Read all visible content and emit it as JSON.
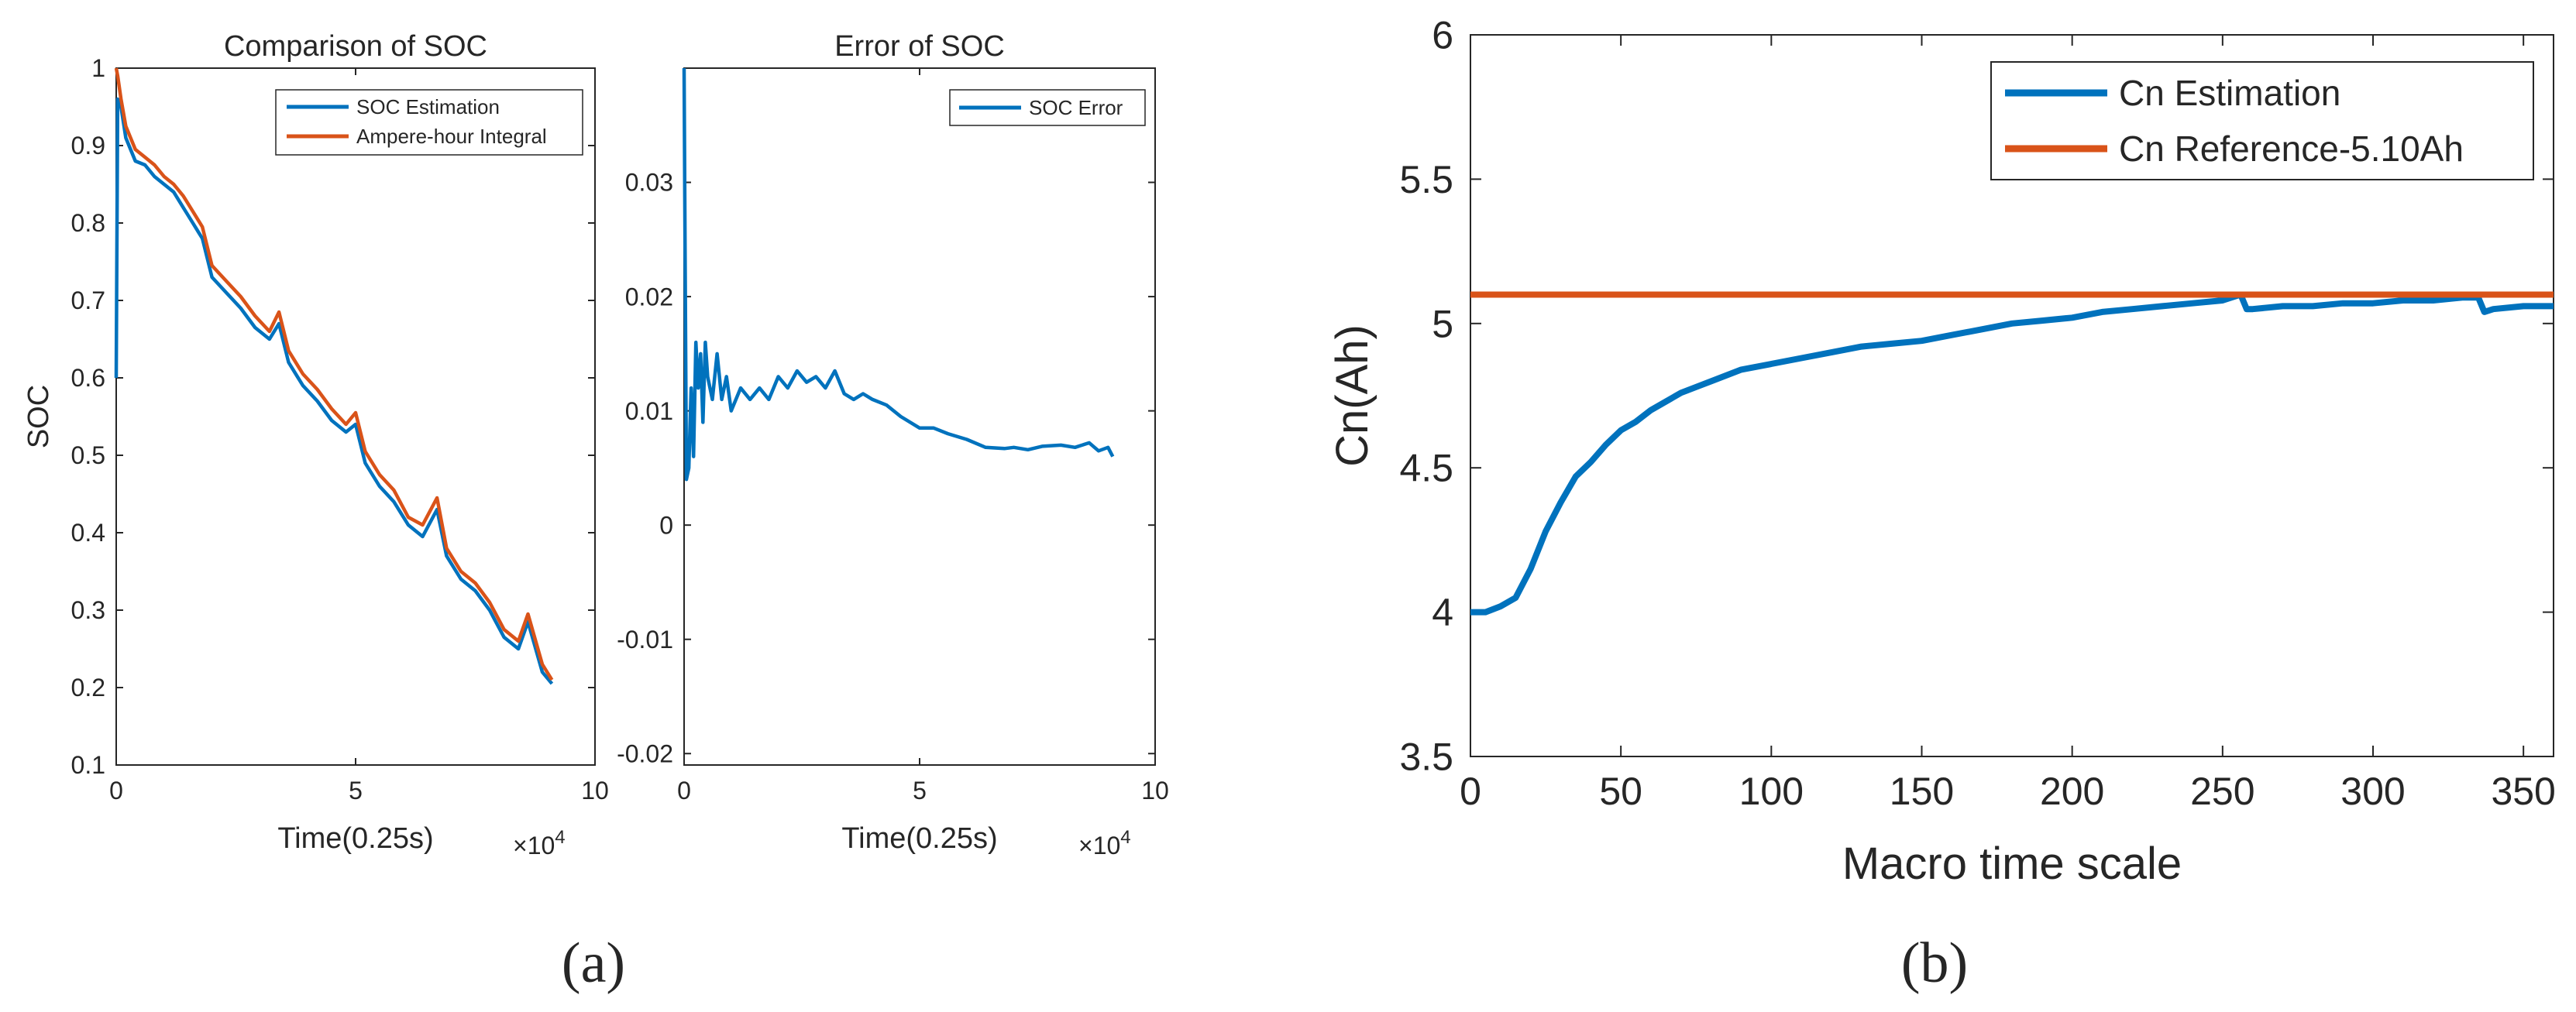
{
  "panel_labels": {
    "a": "(a)",
    "b": "(b)"
  },
  "colors": {
    "blue": "#0072BD",
    "orange": "#D95319",
    "axis": "#262626"
  },
  "chart_data": [
    {
      "id": "soc-comparison",
      "type": "line",
      "title": "Comparison of SOC",
      "xlabel": "Time(0.25s)",
      "ylabel": "SOC",
      "x_multiplier_label": "×10",
      "x_multiplier_exp": "4",
      "xlim": [
        0,
        10
      ],
      "ylim": [
        0.1,
        1
      ],
      "xticks": [
        0,
        5,
        10
      ],
      "xtick_labels": [
        "0",
        "5",
        "10"
      ],
      "yticks": [
        0.1,
        0.2,
        0.3,
        0.4,
        0.5,
        0.6,
        0.7,
        0.8,
        0.9,
        1
      ],
      "ytick_labels": [
        "0.1",
        "0.2",
        "0.3",
        "0.4",
        "0.5",
        "0.6",
        "0.7",
        "0.8",
        "0.9",
        "1"
      ],
      "legend": "top-right",
      "series": [
        {
          "name": "SOC Estimation",
          "color": "#0072BD",
          "x": [
            0,
            0.03,
            0.1,
            0.2,
            0.4,
            0.6,
            0.8,
            1.0,
            1.2,
            1.4,
            1.6,
            1.8,
            2.0,
            2.3,
            2.6,
            2.9,
            3.2,
            3.4,
            3.6,
            3.9,
            4.2,
            4.5,
            4.8,
            5.0,
            5.2,
            5.5,
            5.8,
            6.1,
            6.4,
            6.7,
            6.9,
            7.2,
            7.5,
            7.8,
            8.1,
            8.4,
            8.6,
            8.9,
            9.1
          ],
          "y": [
            0.6,
            0.96,
            0.95,
            0.91,
            0.88,
            0.875,
            0.86,
            0.85,
            0.84,
            0.82,
            0.8,
            0.78,
            0.73,
            0.71,
            0.69,
            0.665,
            0.65,
            0.67,
            0.62,
            0.59,
            0.57,
            0.545,
            0.53,
            0.54,
            0.49,
            0.46,
            0.44,
            0.41,
            0.395,
            0.43,
            0.37,
            0.34,
            0.325,
            0.3,
            0.265,
            0.25,
            0.285,
            0.22,
            0.205
          ]
        },
        {
          "name": "Ampere-hour Integral",
          "color": "#D95319",
          "x": [
            0,
            0.03,
            0.1,
            0.2,
            0.4,
            0.6,
            0.8,
            1.0,
            1.2,
            1.4,
            1.6,
            1.8,
            2.0,
            2.3,
            2.6,
            2.9,
            3.2,
            3.4,
            3.6,
            3.9,
            4.2,
            4.5,
            4.8,
            5.0,
            5.2,
            5.5,
            5.8,
            6.1,
            6.4,
            6.7,
            6.9,
            7.2,
            7.5,
            7.8,
            8.1,
            8.4,
            8.6,
            8.9,
            9.1
          ],
          "y": [
            1.0,
            0.99,
            0.96,
            0.925,
            0.895,
            0.885,
            0.875,
            0.86,
            0.85,
            0.835,
            0.815,
            0.795,
            0.745,
            0.725,
            0.705,
            0.68,
            0.66,
            0.685,
            0.635,
            0.605,
            0.585,
            0.56,
            0.54,
            0.555,
            0.505,
            0.475,
            0.455,
            0.42,
            0.41,
            0.445,
            0.38,
            0.35,
            0.335,
            0.31,
            0.275,
            0.26,
            0.295,
            0.23,
            0.21
          ]
        }
      ]
    },
    {
      "id": "soc-error",
      "type": "line",
      "title": "Error of SOC",
      "xlabel": "Time(0.25s)",
      "ylabel": "",
      "x_multiplier_label": "×10",
      "x_multiplier_exp": "4",
      "xlim": [
        0,
        10
      ],
      "ylim": [
        -0.021,
        0.04
      ],
      "xticks": [
        0,
        5,
        10
      ],
      "xtick_labels": [
        "0",
        "5",
        "10"
      ],
      "yticks": [
        -0.02,
        -0.01,
        0,
        0.01,
        0.02,
        0.03
      ],
      "ytick_labels": [
        "-0.02",
        "-0.01",
        "0",
        "0.01",
        "0.02",
        "0.03"
      ],
      "legend": "top-right",
      "series": [
        {
          "name": "SOC Error",
          "color": "#0072BD",
          "x": [
            0,
            0.02,
            0.05,
            0.1,
            0.15,
            0.2,
            0.25,
            0.3,
            0.35,
            0.4,
            0.45,
            0.5,
            0.6,
            0.7,
            0.8,
            0.9,
            1.0,
            1.2,
            1.4,
            1.6,
            1.8,
            2.0,
            2.2,
            2.4,
            2.6,
            2.8,
            3.0,
            3.2,
            3.4,
            3.6,
            3.8,
            4.0,
            4.3,
            4.6,
            5.0,
            5.3,
            5.6,
            6.0,
            6.4,
            6.8,
            7.0,
            7.3,
            7.6,
            8.0,
            8.3,
            8.6,
            8.8,
            9.0,
            9.1
          ],
          "y": [
            0.04,
            0.025,
            0.004,
            0.005,
            0.012,
            0.006,
            0.016,
            0.012,
            0.015,
            0.009,
            0.016,
            0.013,
            0.011,
            0.015,
            0.011,
            0.013,
            0.01,
            0.012,
            0.011,
            0.012,
            0.011,
            0.013,
            0.012,
            0.0135,
            0.0125,
            0.013,
            0.012,
            0.0135,
            0.0115,
            0.011,
            0.0115,
            0.011,
            0.0105,
            0.0095,
            0.0085,
            0.0085,
            0.008,
            0.0075,
            0.0068,
            0.0067,
            0.0068,
            0.0066,
            0.0069,
            0.007,
            0.0068,
            0.0072,
            0.0065,
            0.0068,
            0.006
          ]
        }
      ]
    },
    {
      "id": "cn-estimation",
      "type": "line",
      "title": "",
      "xlabel": "Macro time scale",
      "ylabel": "Cn(Ah)",
      "xlim": [
        0,
        360
      ],
      "ylim": [
        3.5,
        6
      ],
      "xticks": [
        0,
        50,
        100,
        150,
        200,
        250,
        300,
        350
      ],
      "xtick_labels": [
        "0",
        "50",
        "100",
        "150",
        "200",
        "250",
        "300",
        "350"
      ],
      "yticks": [
        3.5,
        4,
        4.5,
        5,
        5.5,
        6
      ],
      "ytick_labels": [
        "3.5",
        "4",
        "4.5",
        "5",
        "5.5",
        "6"
      ],
      "legend": "top-right",
      "series": [
        {
          "name": "Cn Estimation",
          "color": "#0072BD",
          "x": [
            0,
            5,
            10,
            15,
            20,
            25,
            30,
            35,
            40,
            45,
            50,
            55,
            60,
            65,
            70,
            75,
            80,
            85,
            90,
            100,
            110,
            120,
            130,
            140,
            150,
            160,
            170,
            180,
            190,
            200,
            210,
            220,
            230,
            240,
            250,
            256,
            258,
            260,
            270,
            280,
            290,
            300,
            310,
            320,
            330,
            335,
            337,
            340,
            350,
            360
          ],
          "y": [
            4.0,
            4.0,
            4.02,
            4.05,
            4.15,
            4.28,
            4.38,
            4.47,
            4.52,
            4.58,
            4.63,
            4.66,
            4.7,
            4.73,
            4.76,
            4.78,
            4.8,
            4.82,
            4.84,
            4.86,
            4.88,
            4.9,
            4.92,
            4.93,
            4.94,
            4.96,
            4.98,
            5.0,
            5.01,
            5.02,
            5.04,
            5.05,
            5.06,
            5.07,
            5.08,
            5.1,
            5.05,
            5.05,
            5.06,
            5.06,
            5.07,
            5.07,
            5.08,
            5.08,
            5.09,
            5.09,
            5.04,
            5.05,
            5.06,
            5.06
          ]
        },
        {
          "name": "Cn Reference-5.10Ah",
          "color": "#D95319",
          "x": [
            0,
            360
          ],
          "y": [
            5.1,
            5.1
          ]
        }
      ]
    }
  ]
}
